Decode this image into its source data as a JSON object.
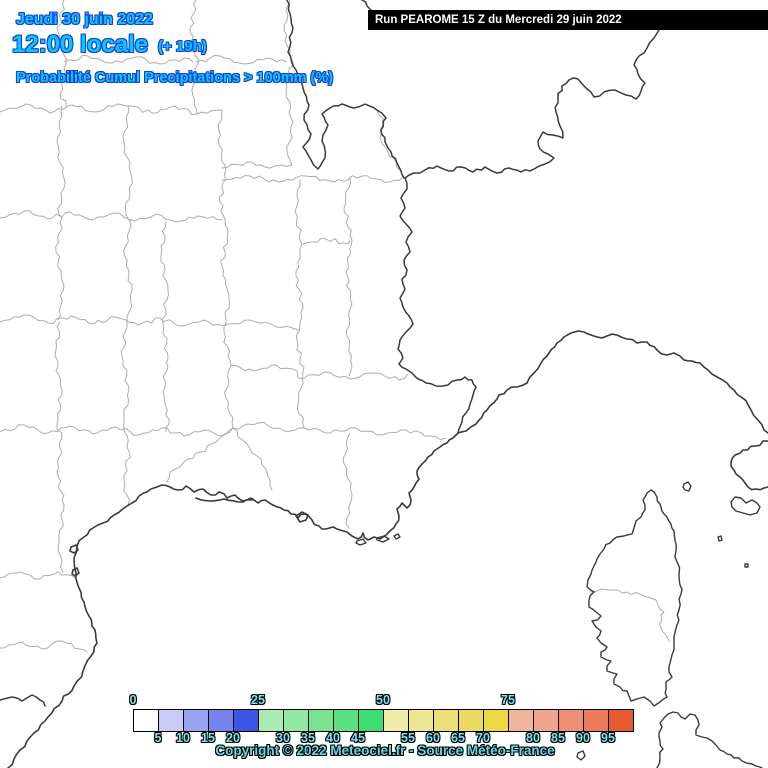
{
  "header": {
    "date_line": "Jeudi 30 juin 2022",
    "time_line": "12:00 locale",
    "run_offset": "(+ 19h)",
    "subtitle": "Probabilité Cumul Precipitations > 100mm (%)",
    "text_fill": "#00ccff",
    "text_outline": "#1e3cd2"
  },
  "run_banner": {
    "label": "Run PEAROME 15 Z du Mercredi 29 juin 2022",
    "bg": "#000000",
    "fg": "#ffffff"
  },
  "map": {
    "land_sea_color": "#ffffff",
    "department_line_color": "#adadad",
    "national_border_color": "#3a3a3a",
    "coastline_color": "#3a3a3a"
  },
  "legend": {
    "unit": "%",
    "values": [
      0,
      5,
      10,
      15,
      20,
      25,
      30,
      35,
      40,
      45,
      50,
      55,
      60,
      65,
      70,
      75,
      80,
      85,
      90,
      95
    ],
    "colors": [
      "#ffffff",
      "#c6cbf7",
      "#99a3f1",
      "#7583ec",
      "#3d55e7",
      "#a9ecb4",
      "#90e8a3",
      "#78e492",
      "#5ce181",
      "#3edd70",
      "#f0ecaa",
      "#eee692",
      "#ece07a",
      "#ecdb60",
      "#edd944",
      "#f2b49f",
      "#f0a68e",
      "#ee9077",
      "#eb7b5c",
      "#e75b33"
    ],
    "top_label_values": [
      0,
      25,
      50,
      75
    ],
    "bottom_label_values": [
      5,
      10,
      15,
      20,
      30,
      35,
      40,
      45,
      55,
      60,
      65,
      70,
      80,
      85,
      90,
      95
    ],
    "label_fill": "#7ce4ee",
    "label_outline": "#000000"
  },
  "footer": {
    "copyright": "Copyright © 2022 Meteociel.fr - Source Météo-France"
  }
}
